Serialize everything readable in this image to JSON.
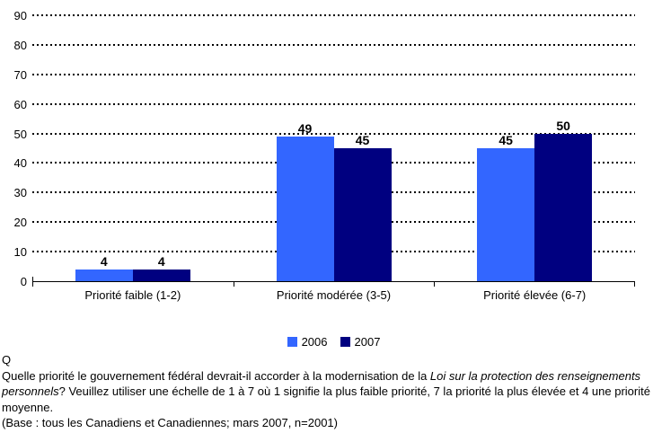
{
  "chart_data": {
    "type": "bar",
    "title": "",
    "categories": [
      "Priorité faible (1-2)",
      "Priorité modérée (3-5)",
      "Priorité élevée (6-7)"
    ],
    "series": [
      {
        "name": "2006",
        "color": "#3366FF",
        "values": [
          4,
          49,
          45
        ]
      },
      {
        "name": "2007",
        "color": "#000080",
        "values": [
          4,
          45,
          50
        ]
      }
    ],
    "xlabel": "",
    "ylabel": "",
    "ylim": [
      0,
      90
    ],
    "ytick_step": 10,
    "grid": "horizontal-dotted",
    "legend_position": "bottom",
    "axis_color": "#000000",
    "value_labels_shown": true
  },
  "caption": {
    "q_label": "Q",
    "question_segments": [
      {
        "text": "Quelle priorité le gouvernement fédéral devrait-il accorder à la modernisation de la ",
        "italic": false
      },
      {
        "text": "Loi sur la protection des renseignements personnels",
        "italic": true
      },
      {
        "text": "? Veuillez utiliser une échelle de 1 à 7 où 1 signifie la plus faible priorité, 7 la priorité la plus élevée et 4 une priorité moyenne.",
        "italic": false
      }
    ],
    "base_note": "(Base : tous les Canadiens et Canadiennes; mars 2007, n=2001)"
  }
}
